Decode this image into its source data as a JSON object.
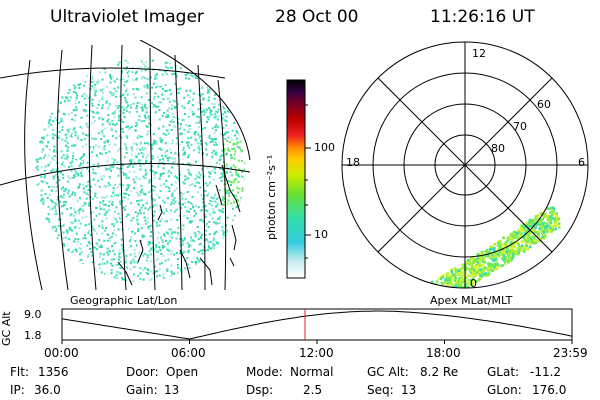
{
  "header": {
    "title": "Ultraviolet Imager",
    "date": "28 Oct 00",
    "time": "11:26:16 UT"
  },
  "left_panel": {
    "label": "Geographic Lat/Lon"
  },
  "right_panel": {
    "label": "Apex MLat/MLT",
    "mlt_labels": [
      "12",
      "18",
      "6",
      "0"
    ],
    "lat_labels": [
      "60",
      "70",
      "80"
    ]
  },
  "colorbar": {
    "unit_label": "photon cm⁻²s⁻¹",
    "tick_labels": [
      "100",
      "10"
    ]
  },
  "orbit_plot": {
    "ylabel": "GC Alt",
    "y_ticks": [
      "9.0",
      "1.8"
    ],
    "x_ticks": [
      "00:00",
      "06:00",
      "12:00",
      "18:00",
      "23:59"
    ],
    "marker_time": "11:26"
  },
  "status": {
    "flt_label": "Flt:",
    "flt_value": "1356",
    "ip_label": "IP:",
    "ip_value": "36.0",
    "door_label": "Door:",
    "door_value": "Open",
    "gain_label": "Gain:",
    "gain_value": "13",
    "mode_label": "Mode:",
    "mode_value": "Normal",
    "dsp_label": "Dsp:",
    "dsp_value": "2.5",
    "gcalt_label": "GC Alt:",
    "gcalt_value": "8.2 Re",
    "seq_label": "Seq:",
    "seq_value": "13",
    "glat_label": "GLat:",
    "glat_value": "-11.2",
    "glon_label": "GLon:",
    "glon_value": "176.0"
  },
  "colors": {
    "aurora_teal": "#33dcb4",
    "aurora_green": "#66e85a",
    "aurora_lime": "#b8f030",
    "marker_red": "#dd2222"
  }
}
